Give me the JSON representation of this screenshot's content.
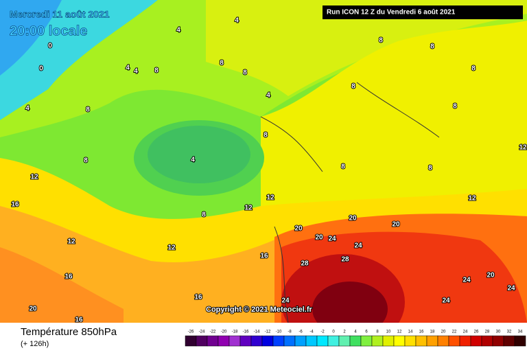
{
  "header": {
    "date": "Mercredi 11 août 2021",
    "time": "20:00 locale",
    "run": "Run ICON 12 Z du Vendredi 6 août 2021"
  },
  "footer": {
    "title": "Température 850hPa",
    "lead": "(+ 126h)",
    "copyright": "Copyright © 2021 Meteociel.fr"
  },
  "legend": {
    "ticks": [
      -26,
      -24,
      -22,
      -20,
      -18,
      -16,
      -14,
      -12,
      -10,
      -8,
      -6,
      -4,
      -2,
      0,
      2,
      4,
      6,
      8,
      10,
      12,
      14,
      16,
      18,
      20,
      22,
      24,
      26,
      28,
      30,
      32,
      34
    ],
    "colors": [
      "#300030",
      "#500060",
      "#700090",
      "#9000b0",
      "#a030d0",
      "#6000c0",
      "#3000d0",
      "#0000e0",
      "#0040ff",
      "#0070ff",
      "#00a0ff",
      "#00c8ff",
      "#00e8ff",
      "#40f0e0",
      "#60f0b0",
      "#40e060",
      "#80f040",
      "#b0f020",
      "#e0f000",
      "#ffff00",
      "#ffe000",
      "#ffc000",
      "#ffa000",
      "#ff8000",
      "#ff5000",
      "#f02000",
      "#d00000",
      "#b00000",
      "#900000",
      "#600000",
      "#300000"
    ]
  },
  "contour_labels": [
    "4",
    "4",
    "0",
    "0",
    "4",
    "4",
    "8",
    "8",
    "8",
    "4",
    "8",
    "8",
    "8",
    "8",
    "8",
    "8",
    "4",
    "8",
    "4",
    "8",
    "8",
    "8",
    "12",
    "16",
    "12",
    "12",
    "12",
    "8",
    "12",
    "16",
    "20",
    "20",
    "24",
    "20",
    "20",
    "24",
    "28",
    "28",
    "24",
    "24",
    "24",
    "20",
    "24",
    "16",
    "16",
    "16",
    "20",
    "12",
    "12"
  ]
}
